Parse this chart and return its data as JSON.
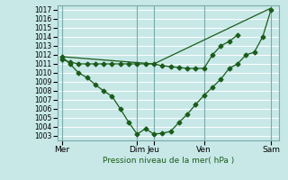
{
  "background_color": "#c8e8e8",
  "grid_color": "#aacccc",
  "line_color": "#1a5c1a",
  "title": "Pression niveau de la mer( hPa )",
  "ylim": [
    1002.5,
    1017.5
  ],
  "yticks": [
    1003,
    1004,
    1005,
    1006,
    1007,
    1008,
    1009,
    1010,
    1011,
    1012,
    1013,
    1014,
    1015,
    1016,
    1017
  ],
  "day_labels": [
    "Mer",
    "Dim",
    "Jeu",
    "Ven",
    "Sam"
  ],
  "day_positions": [
    0,
    9,
    11,
    17,
    25
  ],
  "xlim": [
    -0.5,
    26
  ],
  "line1_x": [
    0,
    11,
    25
  ],
  "line1_y": [
    1011.8,
    1011.0,
    1017.2
  ],
  "line2_x": [
    0,
    1,
    2,
    3,
    4,
    5,
    6,
    7,
    8,
    9,
    10,
    11,
    12,
    13,
    14,
    15,
    16,
    17,
    18,
    19,
    20,
    21,
    22,
    23,
    24,
    25
  ],
  "line2_y": [
    1011.8,
    1011.0,
    1010.0,
    1009.5,
    1008.7,
    1008.0,
    1007.4,
    1006.0,
    1004.5,
    1003.2,
    1003.8,
    1003.2,
    1003.3,
    1003.5,
    1004.5,
    1005.4,
    1006.5,
    1007.5,
    1008.4,
    1009.3,
    1010.5,
    1011.0,
    1012.0,
    1012.3,
    1014.0,
    1017.0
  ],
  "line3_x": [
    0,
    1,
    2,
    3,
    4,
    5,
    6,
    7,
    8,
    9,
    10,
    11,
    12,
    13,
    14,
    15,
    16,
    17,
    18,
    19,
    20,
    21
  ],
  "line3_y": [
    1011.5,
    1011.2,
    1011.0,
    1011.0,
    1011.0,
    1011.0,
    1011.0,
    1011.0,
    1011.0,
    1011.0,
    1011.0,
    1011.0,
    1010.8,
    1010.7,
    1010.6,
    1010.5,
    1010.5,
    1010.5,
    1012.0,
    1013.0,
    1013.5,
    1014.2
  ]
}
